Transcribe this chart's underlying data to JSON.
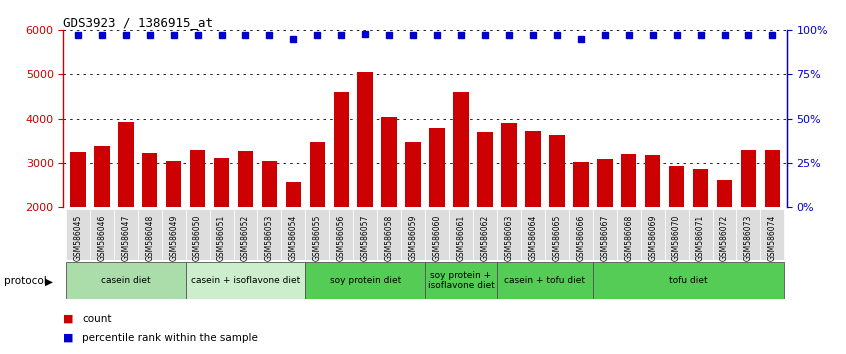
{
  "title": "GDS3923 / 1386915_at",
  "samples": [
    "GSM586045",
    "GSM586046",
    "GSM586047",
    "GSM586048",
    "GSM586049",
    "GSM586050",
    "GSM586051",
    "GSM586052",
    "GSM586053",
    "GSM586054",
    "GSM586055",
    "GSM586056",
    "GSM586057",
    "GSM586058",
    "GSM586059",
    "GSM586060",
    "GSM586061",
    "GSM586062",
    "GSM586063",
    "GSM586064",
    "GSM586065",
    "GSM586066",
    "GSM586067",
    "GSM586068",
    "GSM586069",
    "GSM586070",
    "GSM586071",
    "GSM586072",
    "GSM586073",
    "GSM586074"
  ],
  "counts": [
    3250,
    3380,
    3930,
    3220,
    3050,
    3290,
    3100,
    3260,
    3050,
    2570,
    3480,
    4600,
    5050,
    4030,
    3480,
    3780,
    4600,
    3700,
    3900,
    3720,
    3620,
    3020,
    3080,
    3190,
    3180,
    2920,
    2870,
    2620,
    3300,
    3290
  ],
  "percentile_ranks": [
    97,
    97,
    97,
    97,
    97,
    97,
    97,
    97,
    97,
    95,
    97,
    97,
    98,
    97,
    97,
    97,
    97,
    97,
    97,
    97,
    97,
    95,
    97,
    97,
    97,
    97,
    97,
    97,
    97,
    97
  ],
  "bar_color": "#cc0000",
  "dot_color": "#0000cc",
  "ylim_left": [
    2000,
    6000
  ],
  "ylim_right": [
    0,
    100
  ],
  "yticks_left": [
    2000,
    3000,
    4000,
    5000,
    6000
  ],
  "yticks_right": [
    0,
    25,
    50,
    75,
    100
  ],
  "groups": [
    {
      "label": "casein diet",
      "start": 0,
      "end": 5,
      "color": "#aaddaa"
    },
    {
      "label": "casein + isoflavone diet",
      "start": 5,
      "end": 10,
      "color": "#cceecc"
    },
    {
      "label": "soy protein diet",
      "start": 10,
      "end": 15,
      "color": "#55cc55"
    },
    {
      "label": "soy protein +\nisoflavone diet",
      "start": 15,
      "end": 18,
      "color": "#55cc55"
    },
    {
      "label": "casein + tofu diet",
      "start": 18,
      "end": 22,
      "color": "#55cc55"
    },
    {
      "label": "tofu diet",
      "start": 22,
      "end": 30,
      "color": "#55cc55"
    }
  ],
  "protocol_label": "protocol",
  "legend_count_label": "count",
  "legend_pct_label": "percentile rank within the sample",
  "grid_color": "#000000",
  "bg_color": "#ffffff",
  "tick_bg_color": "#dddddd"
}
